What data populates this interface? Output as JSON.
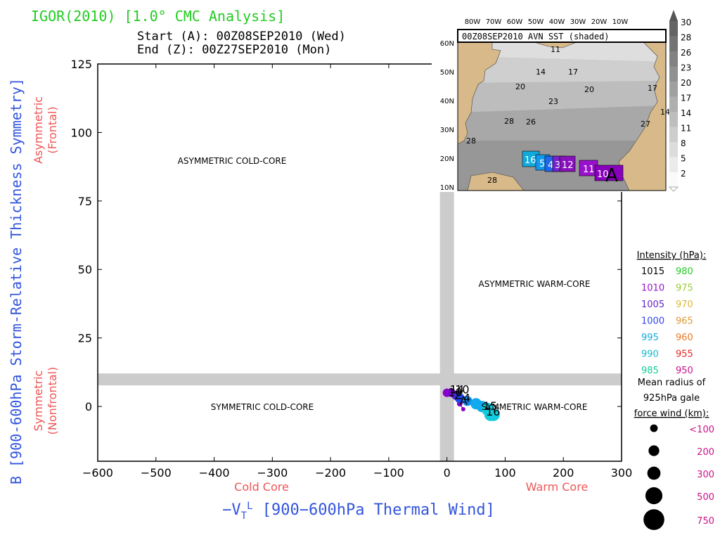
{
  "header": {
    "title": "IGOR(2010) [1.0° CMC Analysis]",
    "start": "Start (A): 00Z08SEP2010 (Wed)",
    "end": "End   (Z): 00Z27SEP2010 (Mon)"
  },
  "colors": {
    "title": "#22cc22",
    "axis_blue": "#3355dd",
    "axis_red": "#ee5555",
    "grey_band": "#cccccc",
    "land": "#d8b98a",
    "sst_dark": "#888888"
  },
  "chart_data": [
    {
      "type": "scatter",
      "title": "",
      "xlabel": "-V_T^L [900-600hPa Thermal Wind]",
      "ylabel": "B [900-600hPa Storm-Relative Thickness Symmetry]",
      "xlim": [
        -600,
        300
      ],
      "ylim": [
        -20,
        125
      ],
      "xticks": [
        -600,
        -500,
        -400,
        -300,
        -200,
        -100,
        0,
        100,
        200,
        300
      ],
      "yticks": [
        0,
        25,
        50,
        75,
        100,
        125
      ],
      "xtick_labels": [
        "−600",
        "−500",
        "−400",
        "−300",
        "−200",
        "−100",
        "0",
        "100",
        "200",
        "300"
      ],
      "ytick_labels": [
        "0",
        "25",
        "50",
        "75",
        "100",
        "125"
      ],
      "x_sub_left": "Cold Core",
      "x_sub_right": "Warm Core",
      "y_sub_top": "Asymmetric\n(Frontal)",
      "y_sub_bottom": "Symmetric\n(Nonfrontal)",
      "quadrants": {
        "asym_cold": "ASYMMETRIC COLD-CORE",
        "asym_warm": "ASYMMETRIC WARM-CORE",
        "sym_cold": "SYMMETRIC COLD-CORE",
        "sym_warm": "SYMMETRIC WARM-CORE"
      },
      "thresholds": {
        "x": 0,
        "y": 10
      },
      "track_points": [
        {
          "x": 28,
          "y": -1,
          "color": "#8800cc",
          "r": 3
        },
        {
          "x": 22,
          "y": 1,
          "color": "#8800cc",
          "r": 4
        },
        {
          "x": 0,
          "y": 5,
          "color": "#8800cc",
          "r": 6
        },
        {
          "x": 8,
          "y": 5,
          "color": "#7700cc",
          "r": 6
        },
        {
          "x": 15,
          "y": 4,
          "color": "#5522dd",
          "r": 6
        },
        {
          "x": 22,
          "y": 3,
          "color": "#2244ee",
          "r": 7
        },
        {
          "x": 35,
          "y": 2,
          "color": "#1188ee",
          "r": 7
        },
        {
          "x": 50,
          "y": 1,
          "color": "#11aaee",
          "r": 8
        },
        {
          "x": 60,
          "y": 0,
          "color": "#11aaee",
          "r": 8
        },
        {
          "x": 70,
          "y": -1,
          "color": "#11ccdd",
          "r": 9
        },
        {
          "x": 75,
          "y": -3,
          "color": "#11ccdd",
          "r": 9
        },
        {
          "x": 80,
          "y": -3,
          "color": "#11ccdd",
          "r": 9
        }
      ],
      "track_labels": [
        {
          "text": "10",
          "x": 2,
          "y": 5
        },
        {
          "text": "14",
          "x": 5,
          "y": 6
        },
        {
          "text": "10",
          "x": 14,
          "y": 6
        },
        {
          "text": "Z",
          "x": 13,
          "y": 4
        },
        {
          "text": "A",
          "x": 22,
          "y": 2
        },
        {
          "text": "4",
          "x": 28,
          "y": 3
        },
        {
          "text": "15",
          "x": 62,
          "y": 0
        },
        {
          "text": "16",
          "x": 67,
          "y": -2
        }
      ]
    },
    {
      "type": "map",
      "title": "00Z08SEP2010 AVN SST (shaded)",
      "lon_labels": [
        "80W",
        "70W",
        "60W",
        "50W",
        "40W",
        "30W",
        "20W",
        "10W"
      ],
      "lat_labels": [
        "60N",
        "50N",
        "40N",
        "30N",
        "20N",
        "10N"
      ],
      "colorbar_labels": [
        "30",
        "28",
        "26",
        "23",
        "20",
        "17",
        "14",
        "11",
        "8",
        "5",
        "2"
      ],
      "contour_labels": [
        "11",
        "14",
        "17",
        "20",
        "17",
        "20",
        "23",
        "28",
        "26",
        "27",
        "14",
        "28",
        "28"
      ],
      "track_labels": [
        "16",
        "5",
        "4",
        "3",
        "12",
        "11",
        "10",
        "A"
      ]
    }
  ],
  "legend": {
    "intensity_title": "Intensity (hPa):",
    "intensity": [
      {
        "label": "1015",
        "color": "#000000"
      },
      {
        "label": "980",
        "color": "#22cc22"
      },
      {
        "label": "1010",
        "color": "#9911cc"
      },
      {
        "label": "975",
        "color": "#99cc33"
      },
      {
        "label": "1005",
        "color": "#6622cc"
      },
      {
        "label": "970",
        "color": "#ddbb33"
      },
      {
        "label": "1000",
        "color": "#3344ee"
      },
      {
        "label": "965",
        "color": "#dd9933"
      },
      {
        "label": "995",
        "color": "#11aadd"
      },
      {
        "label": "960",
        "color": "#ee7722"
      },
      {
        "label": "990",
        "color": "#11bbcc"
      },
      {
        "label": "955",
        "color": "#ee2222"
      },
      {
        "label": "985",
        "color": "#11cc99"
      },
      {
        "label": "950",
        "color": "#cc1188"
      }
    ],
    "wind_title_1": "Mean radius of",
    "wind_title_2": "925hPa gale",
    "wind_title_3": "force wind (km):",
    "wind_sizes": [
      {
        "label": "<100",
        "size": 0.1
      },
      {
        "label": "200",
        "size": 0.2
      },
      {
        "label": "300",
        "size": 0.3
      },
      {
        "label": "500",
        "size": 0.5
      },
      {
        "label": "750",
        "size": 0.75
      }
    ],
    "wind_label_color": "#cc1188"
  }
}
